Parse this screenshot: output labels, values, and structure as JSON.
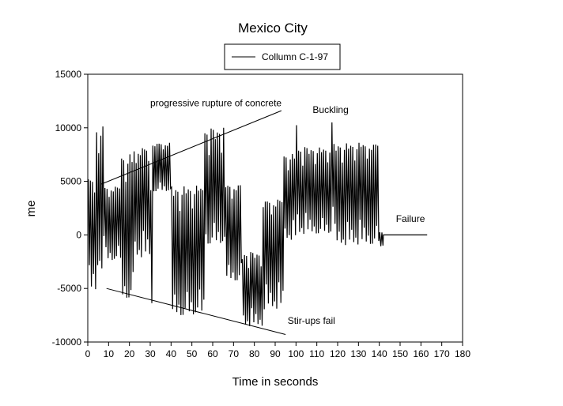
{
  "chart_data": {
    "type": "line",
    "title": "Mexico City",
    "xlabel": "Time in seconds",
    "ylabel": "me",
    "xlim": [
      0,
      180
    ],
    "ylim": [
      -10000,
      15000
    ],
    "xticks": [
      0,
      10,
      20,
      30,
      40,
      50,
      60,
      70,
      80,
      90,
      100,
      110,
      120,
      130,
      140,
      150,
      160,
      170,
      180
    ],
    "yticks": [
      -10000,
      -5000,
      0,
      5000,
      10000,
      15000
    ],
    "grid": false,
    "legend": {
      "position": "top-center",
      "entries": [
        "Collumn C-1-97"
      ]
    },
    "series": [
      {
        "name": "Collumn C-1-97",
        "oscillation_period_s": 1,
        "envelope": [
          {
            "t": [
              0,
              4
            ],
            "min": -5500,
            "max": 5200
          },
          {
            "t": [
              4,
              8
            ],
            "min": -3200,
            "max": 10200
          },
          {
            "t": [
              8,
              16
            ],
            "min": -2500,
            "max": 4500
          },
          {
            "t": [
              16,
              22
            ],
            "min": -6100,
            "max": 7600
          },
          {
            "t": [
              22,
              30
            ],
            "min": -2200,
            "max": 8100
          },
          {
            "t": [
              30,
              31
            ],
            "min": -6700,
            "max": 4700
          },
          {
            "t": [
              31,
              40
            ],
            "min": 4000,
            "max": 8600
          },
          {
            "t": [
              40,
              56
            ],
            "min": -7700,
            "max": 4600
          },
          {
            "t": [
              56,
              66
            ],
            "min": -1000,
            "max": 10000
          },
          {
            "t": [
              66,
              74
            ],
            "min": -4400,
            "max": 4800
          },
          {
            "t": [
              74,
              84
            ],
            "min": -8600,
            "max": -1600
          },
          {
            "t": [
              84,
              94
            ],
            "min": -7000,
            "max": 3300
          },
          {
            "t": [
              94,
              100
            ],
            "min": -500,
            "max": 7600
          },
          {
            "t": [
              100,
              101
            ],
            "min": 1500,
            "max": 10500
          },
          {
            "t": [
              101,
              117
            ],
            "min": 0,
            "max": 8200
          },
          {
            "t": [
              117,
              118
            ],
            "min": 0,
            "max": 10500
          },
          {
            "t": [
              118,
              140
            ],
            "min": -1000,
            "max": 8600
          },
          {
            "t": [
              140,
              142
            ],
            "min": -1100,
            "max": 300
          },
          {
            "t": [
              142,
              163
            ],
            "min": 0,
            "max": 0
          }
        ]
      }
    ],
    "annotations": [
      {
        "text": "progressive rupture of concrete",
        "at": [
          30,
          12000
        ],
        "line": [
          [
            6,
            4700
          ],
          [
            93,
            11600
          ]
        ]
      },
      {
        "text": "Buckling",
        "at": [
          108,
          11400
        ]
      },
      {
        "text": "Stir-ups fail",
        "at": [
          96,
          -8300
        ],
        "line": [
          [
            9,
            -5000
          ],
          [
            95,
            -9300
          ]
        ]
      },
      {
        "text": "Failure",
        "at": [
          148,
          1200
        ]
      }
    ]
  }
}
